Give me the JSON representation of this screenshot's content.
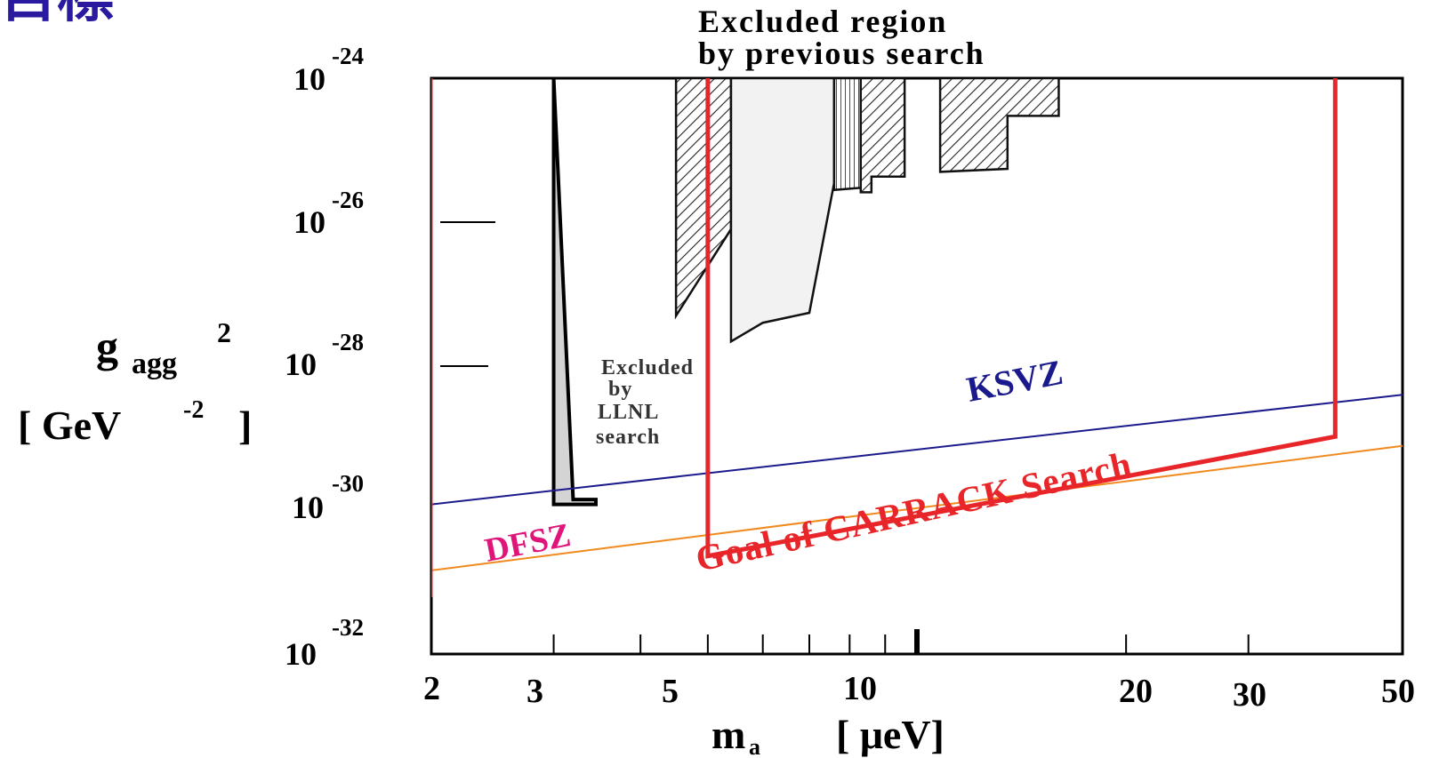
{
  "heading_fragment": "目標",
  "chart_data": {
    "type": "line",
    "x_axis": {
      "scale": "log",
      "range": [
        2,
        50
      ],
      "tick_labels": [
        "2",
        "3",
        "5",
        "10",
        "20",
        "30",
        "50"
      ],
      "tick_values": [
        2,
        3,
        5,
        10,
        20,
        30,
        50
      ],
      "minor_ticks": [
        4,
        6,
        7,
        8,
        9
      ],
      "label_main": "m",
      "label_sub": "a",
      "label_unit": "[ μeV]"
    },
    "y_axis": {
      "scale": "log",
      "range": [
        1e-32,
        1e-24
      ],
      "tick_values": [
        1e-24,
        1e-26,
        1e-28,
        1e-30,
        1e-32
      ],
      "tick_base": "10",
      "tick_exponents": [
        "-24",
        "-26",
        "-28",
        "-30",
        "-32"
      ],
      "label_main": "g",
      "label_sub": "agg",
      "label_sup": "2",
      "label_unit_open": "[ GeV",
      "label_unit_exp": "-2",
      "label_unit_close": " ]"
    },
    "grid": false,
    "series": [
      {
        "name": "KSVZ",
        "color": "#1a1a8c",
        "x": [
          2,
          50
        ],
        "y": [
          1.2e-30,
          4e-29
        ]
      },
      {
        "name": "DFSZ",
        "color": "#f08a1e",
        "x": [
          2,
          50
        ],
        "y": [
          1.45e-31,
          7.8e-30
        ]
      },
      {
        "name": "Goal of CARRACK Search",
        "color": "#e8262a",
        "x": [
          5,
          5,
          40,
          40
        ],
        "y": [
          1e-24,
          2.3e-31,
          1.05e-29,
          1e-24
        ]
      }
    ],
    "excluded_regions": [
      {
        "label": "LLNL",
        "fill": "gray",
        "x": [
          3.0,
          3.0,
          3.45,
          3.45,
          3.2
        ],
        "y": [
          1e-24,
          1.2e-30,
          1.2e-30,
          1.4e-30,
          1.4e-30
        ]
      },
      {
        "fill": "hatch",
        "x": [
          4.5,
          5.4
        ],
        "y_bottom": [
          5e-28,
          8e-27
        ]
      },
      {
        "fill": "light",
        "x": [
          5.4,
          6.0,
          6.0,
          7.0,
          7.0,
          7.6,
          7.6
        ],
        "y_bottom": [
          2.2e-28,
          4e-28,
          4e-28,
          5.5e-28,
          5.5e-28,
          3.5e-26,
          3.5e-26
        ]
      },
      {
        "fill": "hatch",
        "x": [
          7.6,
          8.3
        ],
        "y_bottom": [
          2.8e-26,
          3e-26
        ]
      },
      {
        "fill": "hatch",
        "x": [
          8.3,
          8.6,
          8.6,
          9.6
        ],
        "y_bottom": [
          2.6e-26,
          2.6e-26,
          4.3e-26,
          4.3e-26
        ]
      },
      {
        "fill": "hatch",
        "x": [
          10.8,
          13.5,
          13.5,
          16.0
        ],
        "y_bottom": [
          5e-26,
          5.5e-26,
          3e-25,
          3e-25
        ]
      }
    ],
    "annotations": {
      "excluded_title_line1": "Excluded region",
      "excluded_title_line2": "by previous search",
      "llnl_line1": "Excluded",
      "llnl_line2": "by",
      "llnl_line3": "LLNL",
      "llnl_line4": "search"
    },
    "colors": {
      "ksvz_label": "#1a1a8c",
      "dfsz_label": "#e0157a",
      "goal_label": "#e8262a",
      "heading": "#2a1aa0"
    }
  }
}
